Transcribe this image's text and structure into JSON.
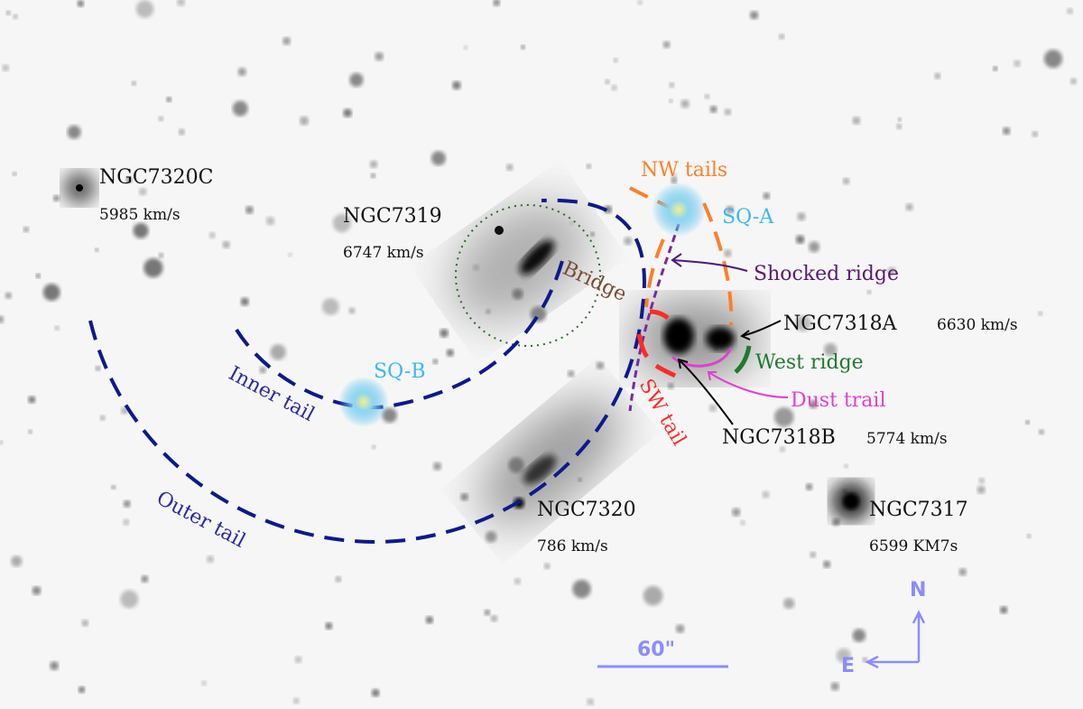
{
  "galaxies": {
    "ngc7320c": {
      "name": "NGC7320C",
      "velocity": "5985 km/s"
    },
    "ngc7319": {
      "name": "NGC7319",
      "velocity": "6747 km/s"
    },
    "ngc7318a": {
      "name": "NGC7318A",
      "velocity": "6630 km/s"
    },
    "ngc7318b": {
      "name": "NGC7318B",
      "velocity": "5774 km/s"
    },
    "ngc7320": {
      "name": "NGC7320",
      "velocity": "786 km/s"
    },
    "ngc7317": {
      "name": "NGC7317",
      "velocity": "6599 KM7s"
    }
  },
  "features": {
    "nw_tails": "NW tails",
    "sq_a": "SQ-A",
    "sq_b": "SQ-B",
    "shocked_ridge": "Shocked ridge",
    "bridge": "Bridge",
    "west_ridge": "West ridge",
    "dust_trail": "Dust trail",
    "sw_tail": "SW tail",
    "inner_tail": "Inner tail",
    "outer_tail": "Outer tail"
  },
  "scale_bar": "60\"",
  "compass": {
    "north": "N",
    "east": "E"
  },
  "colors": {
    "tails": "#0d1a8c",
    "nw_tails": "#ff7f27",
    "sq": "#3cb8f0",
    "shocked_ridge": "#5a1a6e",
    "bridge": "#7a4a35",
    "west_ridge": "#1e7a2e",
    "dust_trail": "#e040d0",
    "sw_tail": "#ff2a2a",
    "compass": "#8c8cff"
  }
}
